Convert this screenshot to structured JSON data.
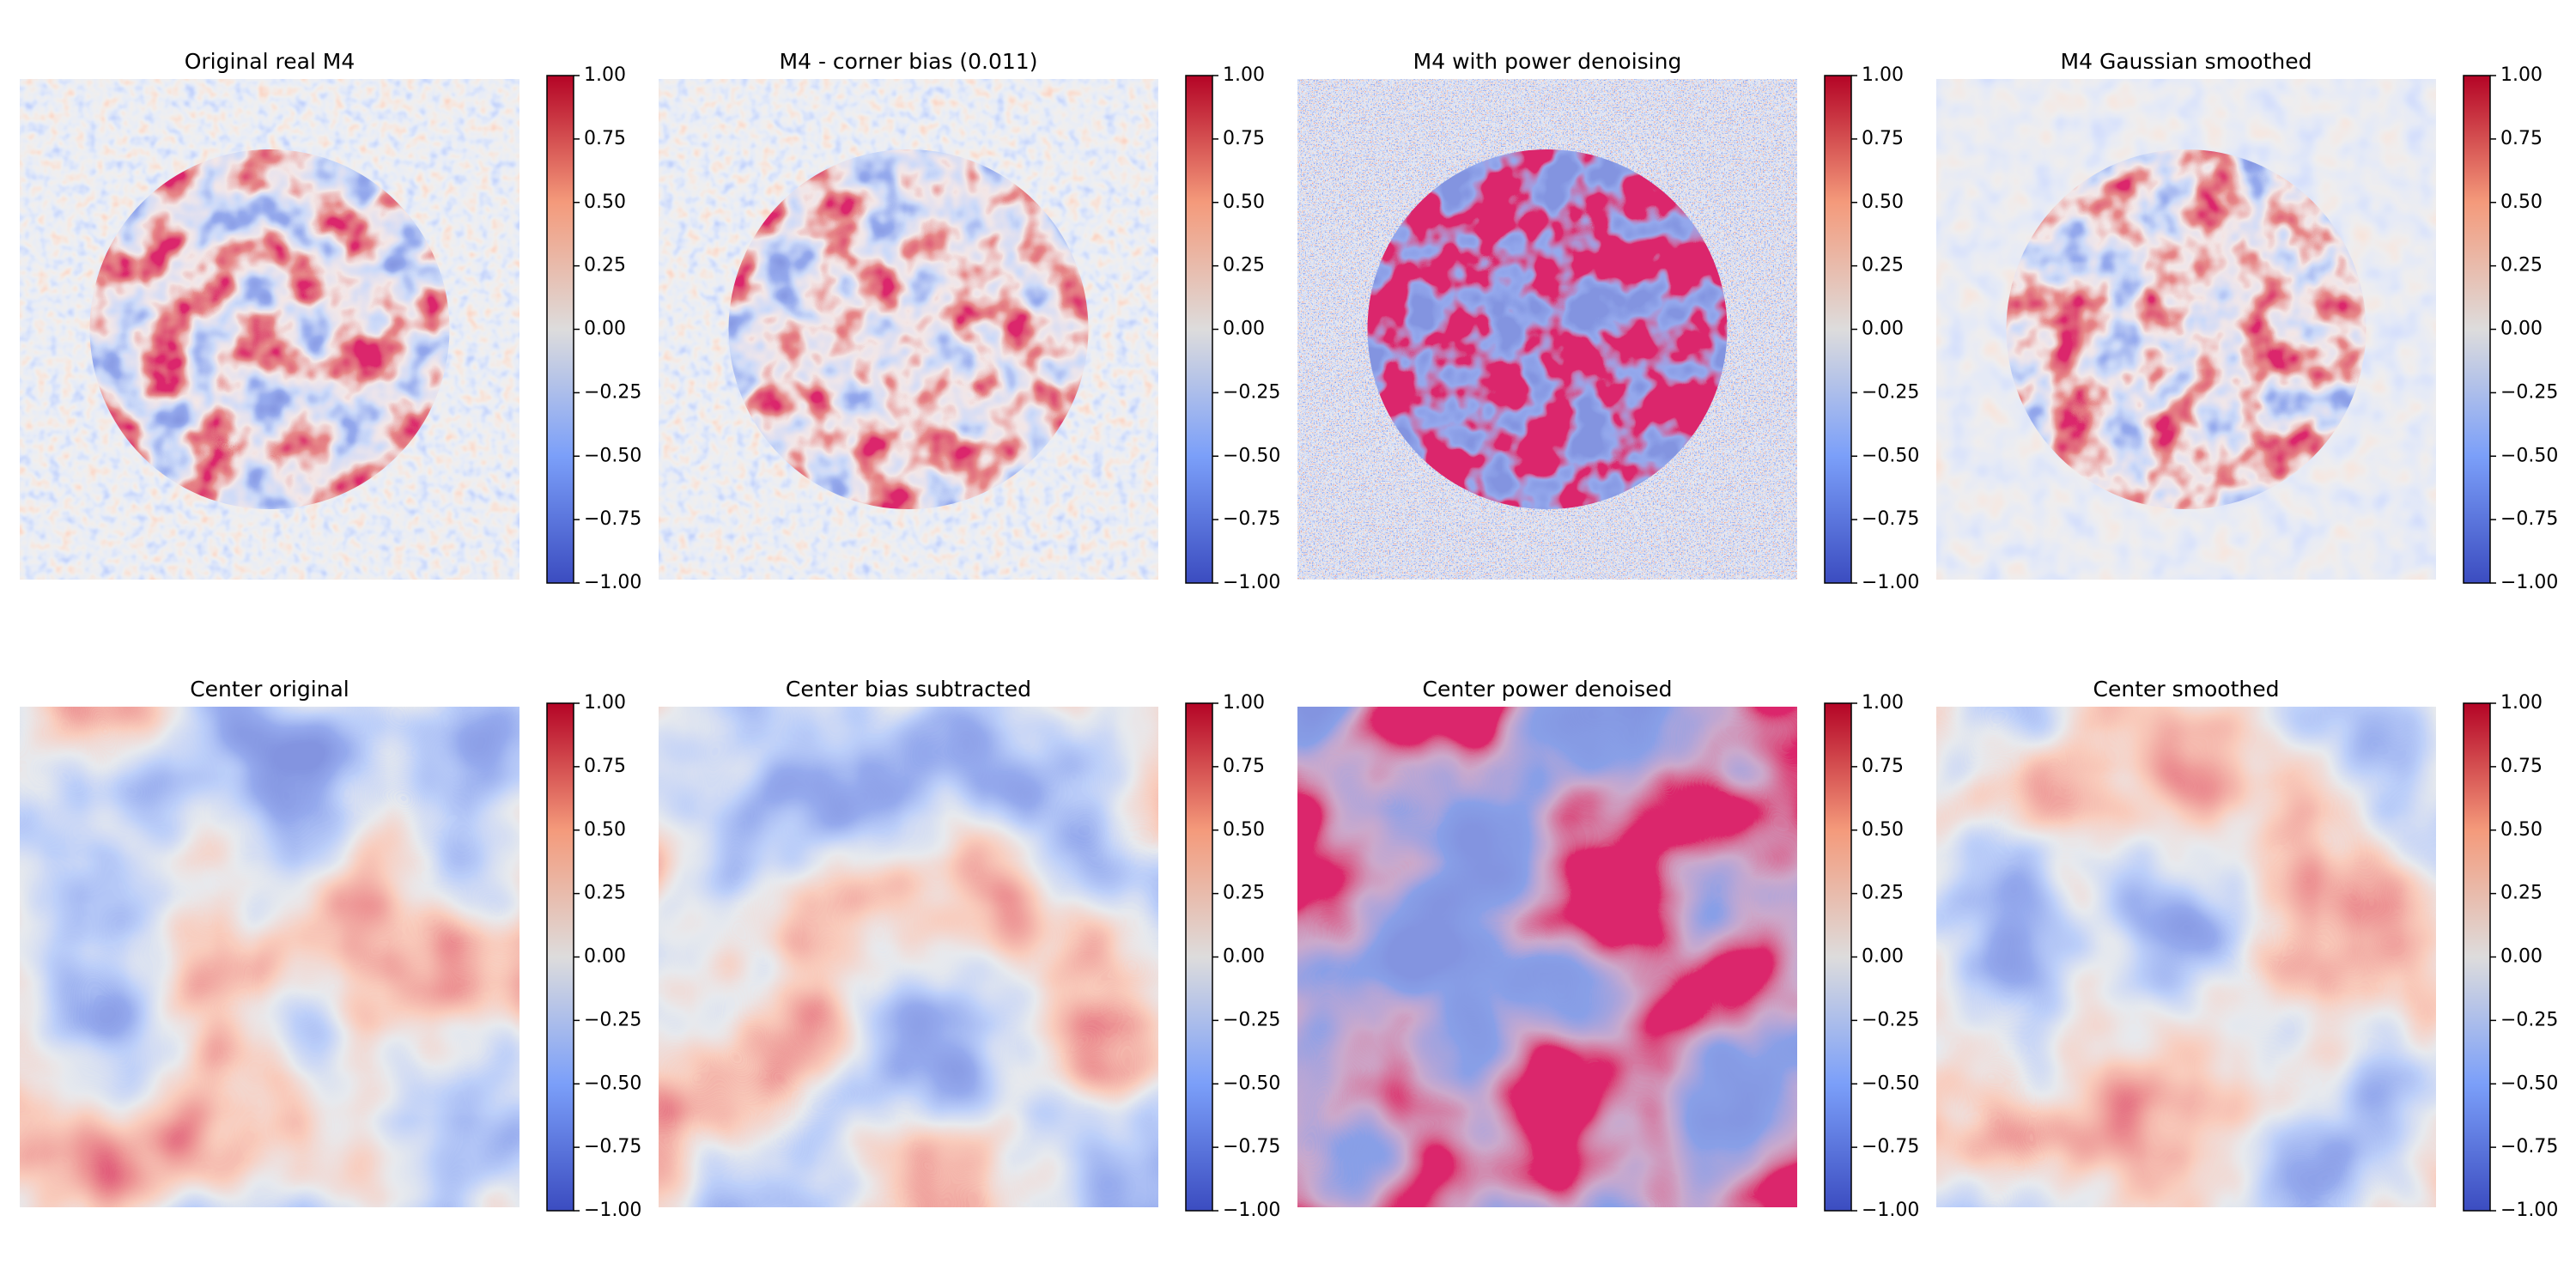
{
  "chart_data": [
    {
      "type": "image",
      "title": "Original real M4",
      "colormap": "coolwarm",
      "clim": [
        -1,
        1
      ],
      "cticks": [
        {
          "value": 1,
          "label": "1.00"
        },
        {
          "value": 0.75,
          "label": "0.75"
        },
        {
          "value": 0.5,
          "label": "0.50"
        },
        {
          "value": 0.25,
          "label": "0.25"
        },
        {
          "value": 0,
          "label": "0.00"
        },
        {
          "value": -0.25,
          "label": "−0.25"
        },
        {
          "value": -0.5,
          "label": "−0.50"
        },
        {
          "value": -0.75,
          "label": "−0.75"
        },
        {
          "value": -1,
          "label": "−1.00"
        }
      ]
    },
    {
      "type": "image",
      "title": "M4 - corner bias (0.011)",
      "colormap": "coolwarm",
      "clim": [
        -1,
        1
      ],
      "cticks": [
        {
          "value": 1,
          "label": "1.00"
        },
        {
          "value": 0.75,
          "label": "0.75"
        },
        {
          "value": 0.5,
          "label": "0.50"
        },
        {
          "value": 0.25,
          "label": "0.25"
        },
        {
          "value": 0,
          "label": "0.00"
        },
        {
          "value": -0.25,
          "label": "−0.25"
        },
        {
          "value": -0.5,
          "label": "−0.50"
        },
        {
          "value": -0.75,
          "label": "−0.75"
        },
        {
          "value": -1,
          "label": "−1.00"
        }
      ]
    },
    {
      "type": "image",
      "title": "M4 with power denoising",
      "colormap": "coolwarm",
      "clim": [
        -1,
        1
      ],
      "cticks": [
        {
          "value": 1,
          "label": "1.00"
        },
        {
          "value": 0.75,
          "label": "0.75"
        },
        {
          "value": 0.5,
          "label": "0.50"
        },
        {
          "value": 0.25,
          "label": "0.25"
        },
        {
          "value": 0,
          "label": "0.00"
        },
        {
          "value": -0.25,
          "label": "−0.25"
        },
        {
          "value": -0.5,
          "label": "−0.50"
        },
        {
          "value": -0.75,
          "label": "−0.75"
        },
        {
          "value": -1,
          "label": "−1.00"
        }
      ]
    },
    {
      "type": "image",
      "title": "M4 Gaussian smoothed",
      "colormap": "coolwarm",
      "clim": [
        -1,
        1
      ],
      "cticks": [
        {
          "value": 1,
          "label": "1.00"
        },
        {
          "value": 0.75,
          "label": "0.75"
        },
        {
          "value": 0.5,
          "label": "0.50"
        },
        {
          "value": 0.25,
          "label": "0.25"
        },
        {
          "value": 0,
          "label": "0.00"
        },
        {
          "value": -0.25,
          "label": "−0.25"
        },
        {
          "value": -0.5,
          "label": "−0.50"
        },
        {
          "value": -0.75,
          "label": "−0.75"
        },
        {
          "value": -1,
          "label": "−1.00"
        }
      ]
    },
    {
      "type": "image",
      "title": "Center original",
      "colormap": "coolwarm",
      "clim": [
        -1,
        1
      ],
      "cticks": [
        {
          "value": 1,
          "label": "1.00"
        },
        {
          "value": 0.75,
          "label": "0.75"
        },
        {
          "value": 0.5,
          "label": "0.50"
        },
        {
          "value": 0.25,
          "label": "0.25"
        },
        {
          "value": 0,
          "label": "0.00"
        },
        {
          "value": -0.25,
          "label": "−0.25"
        },
        {
          "value": -0.5,
          "label": "−0.50"
        },
        {
          "value": -0.75,
          "label": "−0.75"
        },
        {
          "value": -1,
          "label": "−1.00"
        }
      ]
    },
    {
      "type": "image",
      "title": "Center bias subtracted",
      "colormap": "coolwarm",
      "clim": [
        -1,
        1
      ],
      "cticks": [
        {
          "value": 1,
          "label": "1.00"
        },
        {
          "value": 0.75,
          "label": "0.75"
        },
        {
          "value": 0.5,
          "label": "0.50"
        },
        {
          "value": 0.25,
          "label": "0.25"
        },
        {
          "value": 0,
          "label": "0.00"
        },
        {
          "value": -0.25,
          "label": "−0.25"
        },
        {
          "value": -0.5,
          "label": "−0.50"
        },
        {
          "value": -0.75,
          "label": "−0.75"
        },
        {
          "value": -1,
          "label": "−1.00"
        }
      ]
    },
    {
      "type": "image",
      "title": "Center power denoised",
      "colormap": "coolwarm",
      "clim": [
        -1,
        1
      ],
      "cticks": [
        {
          "value": 1,
          "label": "1.00"
        },
        {
          "value": 0.75,
          "label": "0.75"
        },
        {
          "value": 0.5,
          "label": "0.50"
        },
        {
          "value": 0.25,
          "label": "0.25"
        },
        {
          "value": 0,
          "label": "0.00"
        },
        {
          "value": -0.25,
          "label": "−0.25"
        },
        {
          "value": -0.5,
          "label": "−0.50"
        },
        {
          "value": -0.75,
          "label": "−0.75"
        },
        {
          "value": -1,
          "label": "−1.00"
        }
      ]
    },
    {
      "type": "image",
      "title": "Center smoothed",
      "colormap": "coolwarm",
      "clim": [
        -1,
        1
      ],
      "cticks": [
        {
          "value": 1,
          "label": "1.00"
        },
        {
          "value": 0.75,
          "label": "0.75"
        },
        {
          "value": 0.5,
          "label": "0.50"
        },
        {
          "value": 0.25,
          "label": "0.25"
        },
        {
          "value": 0,
          "label": "0.00"
        },
        {
          "value": -0.25,
          "label": "−0.25"
        },
        {
          "value": -0.5,
          "label": "−0.50"
        },
        {
          "value": -0.75,
          "label": "−0.75"
        },
        {
          "value": -1,
          "label": "−1.00"
        }
      ]
    }
  ]
}
